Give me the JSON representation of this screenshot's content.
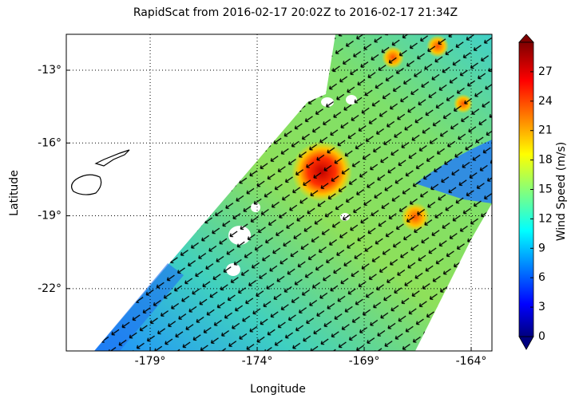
{
  "chart_data": {
    "type": "map",
    "title": "RapidScat  from 2016-02-17 20:02Z to 2016-02-17 21:34Z",
    "x_label": "Longitude",
    "y_label": "Latitude",
    "xlim": [
      -182.92,
      -163.03
    ],
    "xticks": [
      {
        "value": -179,
        "label": "-179°"
      },
      {
        "value": -174,
        "label": "-174°"
      },
      {
        "value": -169,
        "label": "-169°"
      },
      {
        "value": -164,
        "label": "-164°"
      }
    ],
    "ylim": [
      -24.57,
      -11.52
    ],
    "yticks": [
      {
        "value": -13,
        "label": "-13°"
      },
      {
        "value": -16,
        "label": "-16°"
      },
      {
        "value": -19,
        "label": "-19°"
      },
      {
        "value": -22,
        "label": "-22°"
      }
    ],
    "grid": true,
    "colorbar": {
      "label": "Wind Speed (m/s)",
      "lim": [
        0,
        30
      ],
      "ticks": [
        0,
        3,
        6,
        9,
        12,
        15,
        18,
        21,
        24,
        27
      ]
    }
  }
}
